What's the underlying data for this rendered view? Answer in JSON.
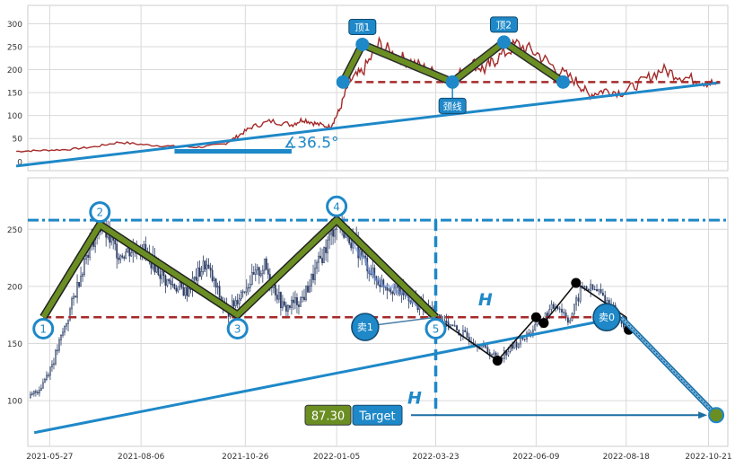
{
  "chart_data": [
    {
      "type": "line",
      "title": "",
      "ylim": [
        -20,
        340
      ],
      "yticks": [
        0,
        50,
        100,
        150,
        200,
        250,
        300
      ],
      "grid": true,
      "series_color": "#a52a2a",
      "pattern_color": "#6b8e23",
      "accent_color": "#1e88c8",
      "neckline_value": 173,
      "price_series": [
        [
          "2021-05-01",
          22
        ],
        [
          "2021-05-20",
          24
        ],
        [
          "2021-06-10",
          26
        ],
        [
          "2021-07-01",
          32
        ],
        [
          "2021-07-20",
          42
        ],
        [
          "2021-08-10",
          36
        ],
        [
          "2021-08-31",
          33
        ],
        [
          "2021-09-20",
          31
        ],
        [
          "2021-10-10",
          38
        ],
        [
          "2021-10-20",
          55
        ],
        [
          "2021-10-31",
          75
        ],
        [
          "2021-11-15",
          88
        ],
        [
          "2021-12-01",
          80
        ],
        [
          "2021-12-10",
          92
        ],
        [
          "2021-12-20",
          82
        ],
        [
          "2021-12-31",
          75
        ],
        [
          "2022-01-07",
          110
        ],
        [
          "2022-01-15",
          175
        ],
        [
          "2022-01-25",
          195
        ],
        [
          "2022-02-07",
          255
        ],
        [
          "2022-02-20",
          230
        ],
        [
          "2022-03-05",
          215
        ],
        [
          "2022-03-20",
          195
        ],
        [
          "2022-04-05",
          175
        ],
        [
          "2022-04-20",
          215
        ],
        [
          "2022-04-30",
          200
        ],
        [
          "2022-05-10",
          225
        ],
        [
          "2022-05-25",
          255
        ],
        [
          "2022-06-10",
          235
        ],
        [
          "2022-06-25",
          200
        ],
        [
          "2022-07-10",
          175
        ],
        [
          "2022-07-20",
          145
        ],
        [
          "2022-08-01",
          155
        ],
        [
          "2022-08-15",
          150
        ],
        [
          "2022-08-31",
          175
        ],
        [
          "2022-09-15",
          200
        ],
        [
          "2022-09-30",
          185
        ],
        [
          "2022-10-15",
          175
        ],
        [
          "2022-10-27",
          168
        ]
      ],
      "pattern_line": [
        [
          "2022-01-10",
          173
        ],
        [
          "2022-01-25",
          255
        ],
        [
          "2022-04-05",
          173
        ],
        [
          "2022-05-15",
          260
        ],
        [
          "2022-06-30",
          173
        ]
      ],
      "trend_line": [
        [
          "2021-05-01",
          -10
        ],
        [
          "2022-10-30",
          172
        ]
      ],
      "angle_base_line": [
        [
          "2021-09-01",
          22
        ],
        [
          "2021-12-01",
          22
        ]
      ],
      "markers": [
        {
          "label": "顶1",
          "point": [
            "2022-01-25",
            255
          ]
        },
        {
          "label": "顶2",
          "point": [
            "2022-05-15",
            260
          ]
        },
        {
          "label": "颈线",
          "point": [
            "2022-04-05",
            173
          ]
        }
      ],
      "annotation_angle": "∡36.5°"
    },
    {
      "type": "candlestick",
      "title": "",
      "ylim": [
        60,
        295
      ],
      "yticks": [
        100,
        150,
        200,
        250
      ],
      "xlim": [
        "2021-05-10",
        "2022-11-05"
      ],
      "xticks": [
        "2021-05-27",
        "2021-08-06",
        "2021-10-26",
        "2022-01-05",
        "2022-03-23",
        "2022-06-09",
        "2022-08-18",
        "2022-10-21"
      ],
      "grid": true,
      "candle_color": "#2c3e66",
      "pattern_color": "#6b8e23",
      "neckline_value": 173,
      "resistance_value": 258,
      "breakout_date": "2022-03-23",
      "price_path": [
        [
          "2021-05-12",
          103
        ],
        [
          "2021-05-20",
          112
        ],
        [
          "2021-05-30",
          135
        ],
        [
          "2021-06-10",
          172
        ],
        [
          "2021-06-25",
          230
        ],
        [
          "2021-07-05",
          254
        ],
        [
          "2021-07-20",
          228
        ],
        [
          "2021-08-06",
          235
        ],
        [
          "2021-08-25",
          205
        ],
        [
          "2021-09-10",
          195
        ],
        [
          "2021-09-25",
          220
        ],
        [
          "2021-10-12",
          176
        ],
        [
          "2021-10-26",
          200
        ],
        [
          "2021-11-10",
          218
        ],
        [
          "2021-11-25",
          180
        ],
        [
          "2021-12-10",
          190
        ],
        [
          "2021-12-28",
          235
        ],
        [
          "2022-01-05",
          258
        ],
        [
          "2022-01-20",
          235
        ],
        [
          "2022-02-05",
          205
        ],
        [
          "2022-02-25",
          195
        ],
        [
          "2022-03-23",
          174
        ],
        [
          "2022-04-10",
          160
        ],
        [
          "2022-04-25",
          150
        ],
        [
          "2022-05-10",
          137
        ],
        [
          "2022-05-25",
          150
        ],
        [
          "2022-06-09",
          165
        ],
        [
          "2022-06-25",
          185
        ],
        [
          "2022-07-05",
          170
        ],
        [
          "2022-07-15",
          200
        ],
        [
          "2022-07-28",
          195
        ],
        [
          "2022-08-10",
          178
        ],
        [
          "2022-08-18",
          163
        ]
      ],
      "pattern_line": [
        [
          "2021-05-22",
          173
        ],
        [
          "2021-07-05",
          254
        ],
        [
          "2021-10-20",
          175
        ],
        [
          "2022-01-05",
          258
        ],
        [
          "2022-03-23",
          173
        ]
      ],
      "fall_path": [
        [
          "2022-03-23",
          173
        ],
        [
          "2022-05-10",
          135
        ],
        [
          "2022-06-09",
          173
        ],
        [
          "2022-06-15",
          168
        ],
        [
          "2022-07-10",
          203
        ],
        [
          "2022-08-18",
          173
        ],
        [
          "2022-08-20",
          162
        ]
      ],
      "black_points": [
        [
          "2022-05-10",
          135
        ],
        [
          "2022-06-09",
          173
        ],
        [
          "2022-06-15",
          168
        ],
        [
          "2022-07-10",
          203
        ],
        [
          "2022-08-20",
          162
        ]
      ],
      "trend_line": [
        [
          "2021-05-15",
          72
        ],
        [
          "2022-08-14",
          173
        ]
      ],
      "target_arrow": [
        [
          "2022-08-14",
          173
        ],
        [
          "2022-10-27",
          87.3
        ]
      ],
      "pattern_labels": [
        {
          "label": "1",
          "point": [
            "2021-05-22",
            163
          ]
        },
        {
          "label": "2",
          "point": [
            "2021-07-05",
            265
          ]
        },
        {
          "label": "3",
          "point": [
            "2021-10-20",
            163
          ]
        },
        {
          "label": "4",
          "point": [
            "2022-01-05",
            270
          ]
        },
        {
          "label": "5",
          "point": [
            "2022-03-23",
            163
          ]
        }
      ],
      "sell_labels": [
        {
          "label": "卖1",
          "point": [
            "2022-03-10",
            155
          ]
        },
        {
          "label": "卖0",
          "point": [
            "2022-08-14",
            173
          ]
        }
      ],
      "height_labels": [
        "H",
        "H"
      ],
      "target_value": "87.30",
      "target_label": "Target",
      "target_point": [
        "2022-10-27",
        87.3
      ],
      "colors": {
        "accent": "#1e88c8",
        "neck": "#a52a2a",
        "target_value_bg": "#6b8e23"
      }
    }
  ]
}
